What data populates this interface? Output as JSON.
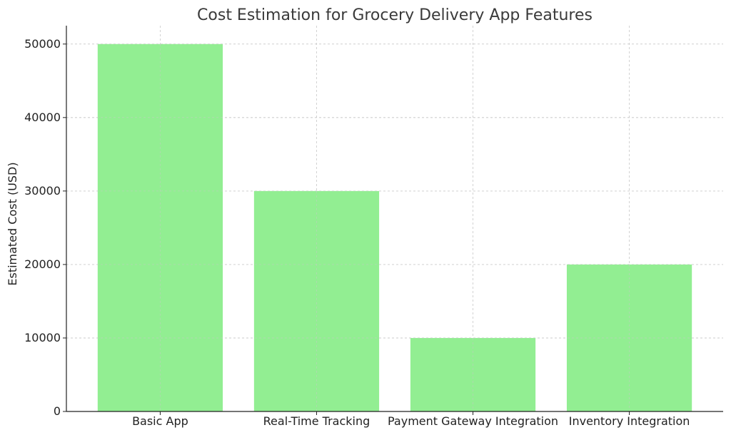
{
  "chart_data": {
    "type": "bar",
    "title": "Cost Estimation for Grocery Delivery App Features",
    "xlabel": "",
    "ylabel": "Estimated Cost (USD)",
    "categories": [
      "Basic App",
      "Real-Time Tracking",
      "Payment Gateway Integration",
      "Inventory Integration"
    ],
    "values": [
      50000,
      30000,
      10000,
      20000
    ],
    "ylim": [
      0,
      52500
    ],
    "yticks": [
      0,
      10000,
      20000,
      30000,
      40000,
      50000
    ],
    "grid": true,
    "bar_color": "#90ee90",
    "legend": false
  }
}
